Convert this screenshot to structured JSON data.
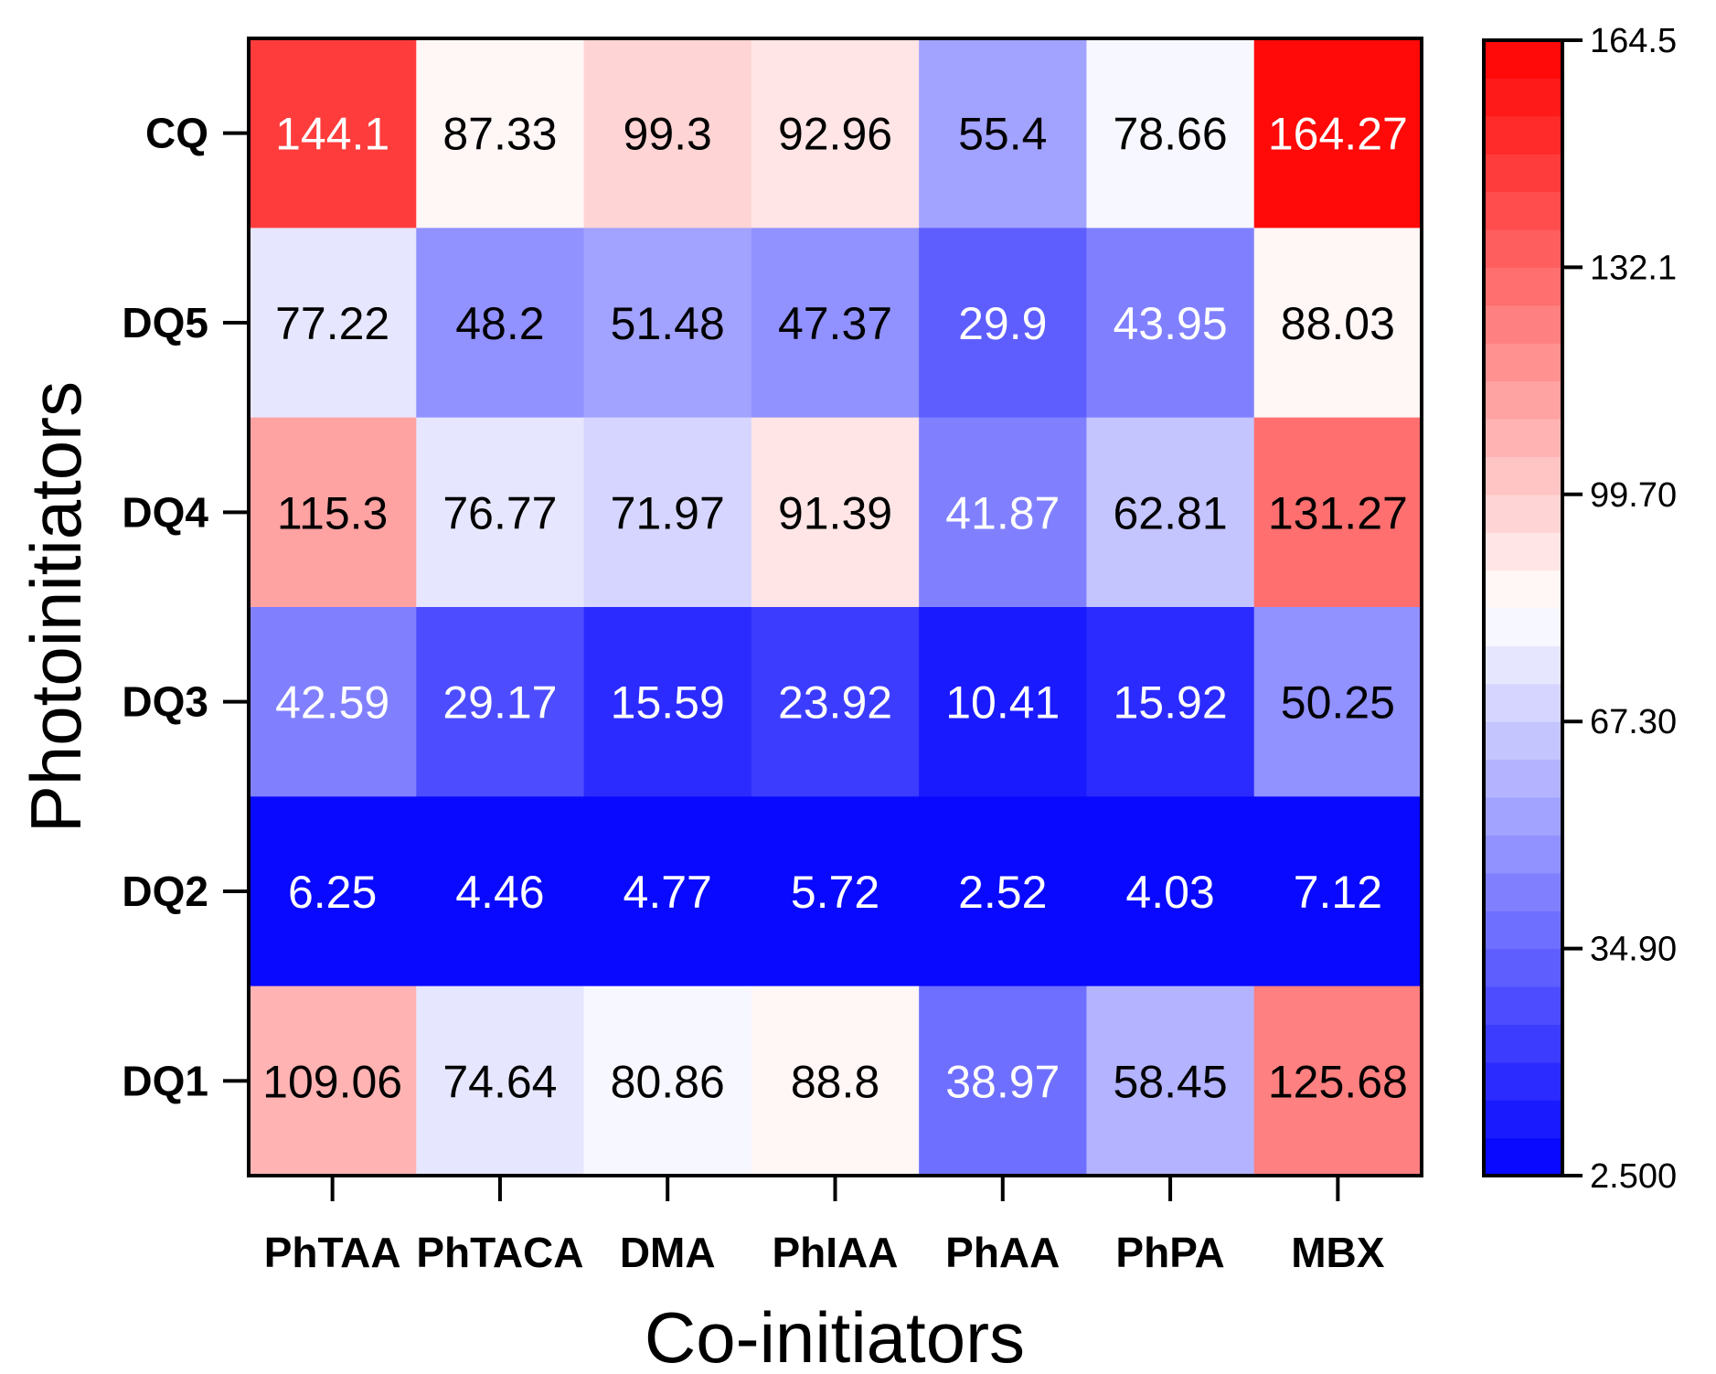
{
  "chart_data": {
    "type": "heatmap",
    "title": "",
    "xlabel": "Co-initiators",
    "ylabel": "Photoinitiators",
    "x_categories": [
      "PhTAA",
      "PhTACA",
      "DMA",
      "PhIAA",
      "PhAA",
      "PhPA",
      "MBX"
    ],
    "y_categories": [
      "CQ",
      "DQ5",
      "DQ4",
      "DQ3",
      "DQ2",
      "DQ1"
    ],
    "values": [
      [
        144.1,
        87.33,
        99.3,
        92.96,
        55.4,
        78.66,
        164.27
      ],
      [
        77.22,
        48.2,
        51.48,
        47.37,
        29.9,
        43.95,
        88.03
      ],
      [
        115.3,
        76.77,
        71.97,
        91.39,
        41.87,
        62.81,
        131.27
      ],
      [
        42.59,
        29.17,
        15.59,
        23.92,
        10.41,
        15.92,
        50.25
      ],
      [
        6.25,
        4.46,
        4.77,
        5.72,
        2.52,
        4.03,
        7.12
      ],
      [
        109.06,
        74.64,
        80.86,
        88.8,
        38.97,
        58.45,
        125.68
      ]
    ],
    "cell_labels": [
      [
        "144.1",
        "87.33",
        "99.3",
        "92.96",
        "55.4",
        "78.66",
        "164.27"
      ],
      [
        "77.22",
        "48.2",
        "51.48",
        "47.37",
        "29.9",
        "43.95",
        "88.03"
      ],
      [
        "115.3",
        "76.77",
        "71.97",
        "91.39",
        "41.87",
        "62.81",
        "131.27"
      ],
      [
        "42.59",
        "29.17",
        "15.59",
        "23.92",
        "10.41",
        "15.92",
        "50.25"
      ],
      [
        "6.25",
        "4.46",
        "4.77",
        "5.72",
        "2.52",
        "4.03",
        "7.12"
      ],
      [
        "109.06",
        "74.64",
        "80.86",
        "88.8",
        "38.97",
        "58.45",
        "125.68"
      ]
    ],
    "colorbar": {
      "range": [
        2.5,
        164.5
      ],
      "ticks": [
        2.5,
        34.9,
        67.3,
        99.7,
        132.1,
        164.5
      ],
      "tick_labels": [
        "2.500",
        "34.90",
        "67.30",
        "99.70",
        "132.1",
        "164.5"
      ],
      "levels": 30,
      "colormap": [
        "#0000ff",
        "#ffffff",
        "#ff0000"
      ]
    }
  }
}
